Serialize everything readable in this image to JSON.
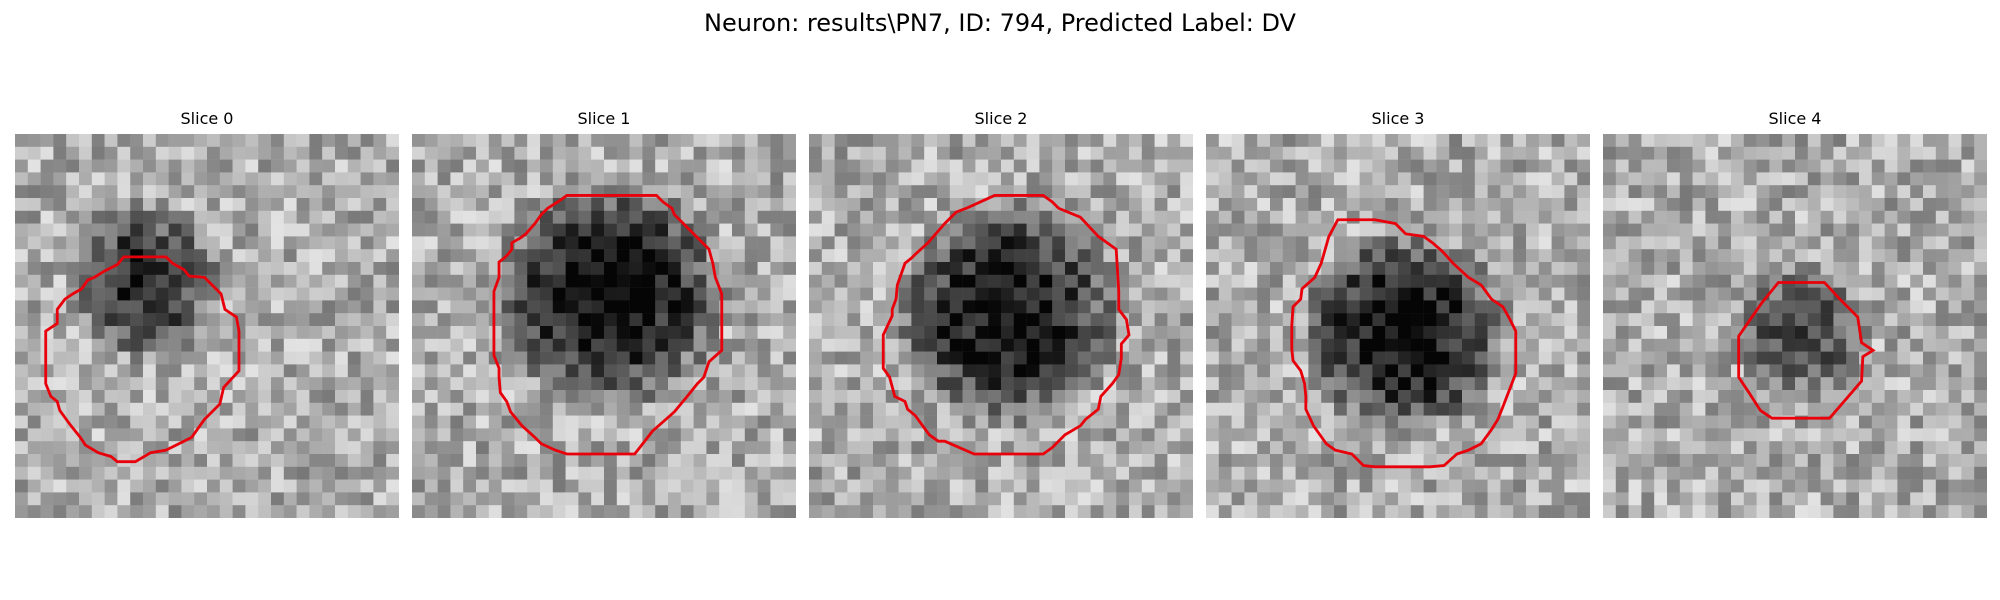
{
  "figure": {
    "title": "Neuron: results\\PN7, ID: 794, Predicted Label: DV"
  },
  "colors": {
    "background": "#ffffff",
    "contour": "#e8000b"
  },
  "panels": [
    {
      "title": "Slice 0",
      "seed": 11,
      "blob_darkness": 0.55,
      "contour_size": "small"
    },
    {
      "title": "Slice 1",
      "seed": 23,
      "blob_darkness": 0.7,
      "contour_size": "large"
    },
    {
      "title": "Slice 2",
      "seed": 37,
      "blob_darkness": 0.65,
      "contour_size": "large"
    },
    {
      "title": "Slice 3",
      "seed": 41,
      "blob_darkness": 0.7,
      "contour_size": "large"
    },
    {
      "title": "Slice 4",
      "seed": 59,
      "blob_darkness": 0.45,
      "contour_size": "small"
    }
  ]
}
